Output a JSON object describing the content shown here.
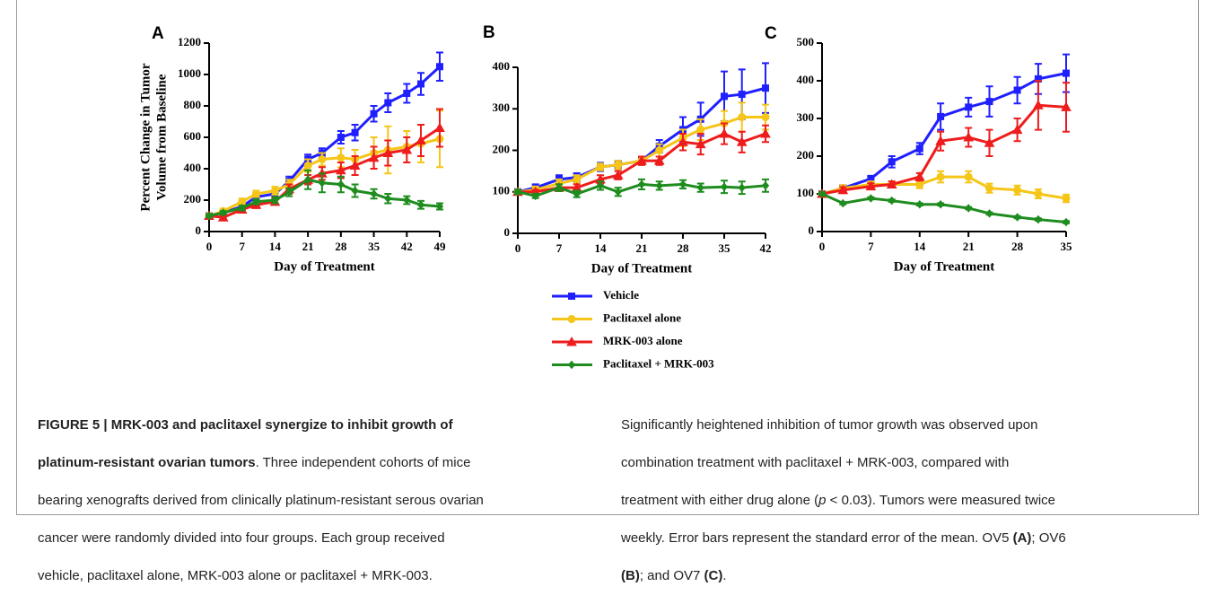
{
  "chart_data": [
    {
      "type": "line",
      "title": "A",
      "ylabel": [
        "Percent Change in Tumor",
        "Volume from Baseline"
      ],
      "xlabel": "Day of Treatment",
      "x": [
        0,
        3,
        7,
        10,
        14,
        17,
        21,
        24,
        28,
        31,
        35,
        38,
        42,
        45,
        49
      ],
      "xlim": [
        0,
        49
      ],
      "xticks": [
        0,
        7,
        14,
        21,
        28,
        35,
        42,
        49
      ],
      "ylim": [
        0,
        1200
      ],
      "yticks": [
        0,
        200,
        400,
        600,
        800,
        1000,
        1200
      ],
      "series": [
        {
          "name": "Vehicle",
          "color": "#1f1fff",
          "values": [
            100,
            120,
            160,
            220,
            240,
            320,
            460,
            500,
            600,
            630,
            750,
            820,
            880,
            940,
            1050
          ],
          "errors": [
            10,
            15,
            20,
            20,
            25,
            30,
            30,
            30,
            40,
            50,
            50,
            60,
            60,
            70,
            90
          ]
        },
        {
          "name": "Paclitaxel alone",
          "color": "#f5c518",
          "values": [
            100,
            130,
            190,
            240,
            260,
            300,
            420,
            460,
            470,
            460,
            500,
            520,
            540,
            560,
            590
          ],
          "errors": [
            10,
            15,
            20,
            20,
            25,
            30,
            40,
            40,
            60,
            60,
            100,
            150,
            100,
            120,
            180
          ]
        },
        {
          "name": "MRK-003 alone",
          "color": "#ee1c1c",
          "values": [
            100,
            90,
            140,
            170,
            190,
            270,
            330,
            370,
            390,
            420,
            470,
            500,
            520,
            580,
            660
          ],
          "errors": [
            10,
            10,
            15,
            20,
            20,
            30,
            30,
            40,
            50,
            60,
            70,
            80,
            80,
            100,
            120
          ]
        },
        {
          "name": "Paclitaxel + MRK-003",
          "color": "#1e8c1e",
          "values": [
            100,
            120,
            150,
            190,
            200,
            250,
            330,
            310,
            300,
            260,
            240,
            210,
            200,
            170,
            160
          ],
          "errors": [
            10,
            10,
            15,
            15,
            20,
            25,
            60,
            60,
            50,
            40,
            30,
            30,
            25,
            25,
            20
          ]
        }
      ]
    },
    {
      "type": "line",
      "title": "B",
      "xlabel": "Day of Treatment",
      "x": [
        0,
        3,
        7,
        10,
        14,
        17,
        21,
        24,
        28,
        31,
        35,
        38,
        42
      ],
      "xlim": [
        0,
        42
      ],
      "xticks": [
        0,
        7,
        14,
        21,
        28,
        35,
        42
      ],
      "ylim": [
        0,
        400
      ],
      "yticks": [
        0,
        100,
        200,
        300,
        400
      ],
      "series": [
        {
          "color": "#1f1fff",
          "values": [
            100,
            110,
            130,
            135,
            160,
            165,
            175,
            210,
            250,
            275,
            330,
            335,
            350
          ],
          "errors": [
            5,
            8,
            10,
            10,
            10,
            10,
            10,
            15,
            30,
            40,
            60,
            60,
            60
          ]
        },
        {
          "color": "#f5c518",
          "values": [
            100,
            105,
            120,
            130,
            160,
            165,
            175,
            200,
            230,
            250,
            265,
            280,
            280
          ],
          "errors": [
            5,
            8,
            10,
            10,
            8,
            10,
            10,
            15,
            20,
            25,
            30,
            35,
            30
          ]
        },
        {
          "color": "#ee1c1c",
          "values": [
            100,
            100,
            110,
            110,
            130,
            140,
            175,
            175,
            220,
            215,
            240,
            220,
            240
          ],
          "errors": [
            5,
            5,
            8,
            8,
            10,
            10,
            10,
            10,
            20,
            25,
            25,
            25,
            20
          ]
        },
        {
          "color": "#1e8c1e",
          "values": [
            100,
            90,
            110,
            95,
            115,
            100,
            118,
            115,
            118,
            110,
            112,
            110,
            115
          ],
          "errors": [
            5,
            5,
            8,
            8,
            10,
            10,
            12,
            10,
            10,
            10,
            15,
            15,
            15
          ]
        }
      ]
    },
    {
      "type": "line",
      "title": "C",
      "xlabel": "Day of Treatment",
      "x": [
        0,
        3,
        7,
        10,
        14,
        17,
        21,
        24,
        28,
        31,
        35
      ],
      "xlim": [
        0,
        35
      ],
      "xticks": [
        0,
        7,
        14,
        21,
        28,
        35
      ],
      "ylim": [
        0,
        500
      ],
      "yticks": [
        0,
        100,
        200,
        300,
        400,
        500
      ],
      "series": [
        {
          "color": "#1f1fff",
          "values": [
            100,
            115,
            140,
            185,
            220,
            305,
            330,
            345,
            375,
            405,
            420
          ],
          "errors": [
            5,
            8,
            8,
            15,
            15,
            35,
            25,
            40,
            35,
            40,
            50
          ]
        },
        {
          "color": "#f5c518",
          "values": [
            100,
            115,
            125,
            125,
            125,
            145,
            145,
            115,
            110,
            100,
            88
          ],
          "errors": [
            5,
            8,
            8,
            8,
            10,
            15,
            15,
            12,
            12,
            12,
            10
          ]
        },
        {
          "color": "#ee1c1c",
          "values": [
            100,
            110,
            120,
            125,
            145,
            240,
            250,
            235,
            270,
            335,
            330
          ],
          "errors": [
            5,
            8,
            8,
            8,
            10,
            25,
            25,
            35,
            30,
            65,
            65
          ]
        },
        {
          "color": "#1e8c1e",
          "values": [
            100,
            75,
            88,
            82,
            72,
            72,
            62,
            48,
            38,
            32,
            25
          ],
          "errors": [
            3,
            3,
            3,
            3,
            3,
            3,
            3,
            3,
            3,
            3,
            3
          ]
        }
      ]
    }
  ],
  "caption": {
    "left": [
      [
        "FIGURE 5 | MRK-003 and paclitaxel synergize to inhibit growth of"
      ],
      [
        "platinum-resistant ovarian tumors",
        ". Three independent cohorts of mice"
      ],
      [
        "bearing xenografts derived from clinically platinum-resistant serous ovarian"
      ],
      [
        "cancer were randomly divided into four groups. Each group received"
      ],
      [
        "vehicle, paclitaxel alone, MRK-003 alone or paclitaxel + MRK-003."
      ]
    ],
    "right": [
      [
        "Significantly heightened inhibition of tumor growth was observed upon"
      ],
      [
        "combination treatment with paclitaxel + MRK-003, compared with"
      ],
      [
        "treatment with either drug alone (",
        "p",
        " < 0.03). Tumors were measured twice"
      ],
      [
        "weekly. Error bars represent the standard error of the mean. OV5 ",
        "(A)",
        "; OV6"
      ],
      [
        "(B)",
        "; and OV7 ",
        "(C)",
        "."
      ]
    ]
  }
}
